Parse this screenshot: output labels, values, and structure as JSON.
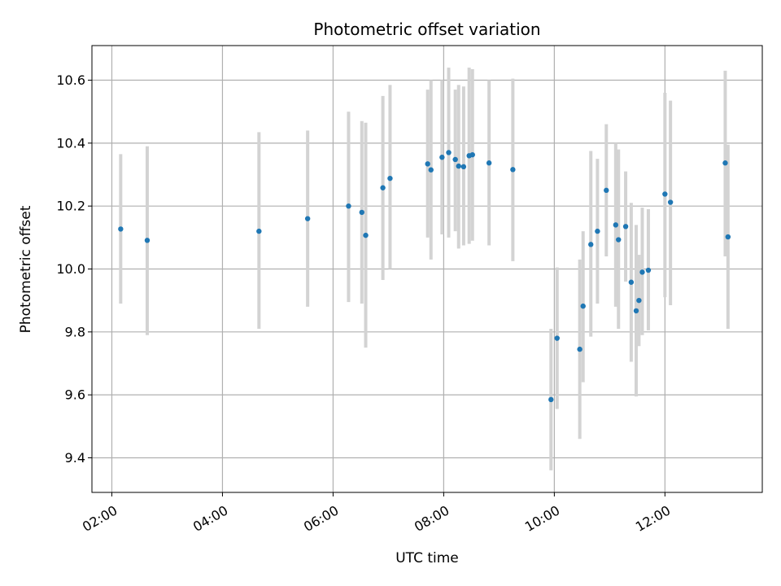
{
  "chart_data": {
    "type": "scatter",
    "title": "Photometric offset variation",
    "xlabel": "UTC time",
    "ylabel": "Photometric offset",
    "x_unit": "hours UTC",
    "xlim": [
      1.64,
      13.76
    ],
    "ylim": [
      9.29,
      10.71
    ],
    "x_ticks": [
      2,
      4,
      6,
      8,
      10,
      12
    ],
    "x_tick_labels": [
      "02:00",
      "04:00",
      "06:00",
      "08:00",
      "10:00",
      "12:00"
    ],
    "y_ticks": [
      9.4,
      9.6,
      9.8,
      10.0,
      10.2,
      10.4,
      10.6
    ],
    "y_tick_labels": [
      "9.4",
      "9.6",
      "9.8",
      "10.0",
      "10.2",
      "10.4",
      "10.6"
    ],
    "grid": true,
    "colors": {
      "points": "#1f77b4",
      "error_bars": "#d3d3d3",
      "grid": "#b0b0b0",
      "axes": "#000000"
    },
    "series": [
      {
        "points": [
          {
            "x": 2.16,
            "y": 10.127,
            "lo": 9.89,
            "hi": 10.365
          },
          {
            "x": 2.64,
            "y": 10.091,
            "lo": 9.79,
            "hi": 10.39
          },
          {
            "x": 4.66,
            "y": 10.12,
            "lo": 9.81,
            "hi": 10.435
          },
          {
            "x": 5.54,
            "y": 10.16,
            "lo": 9.88,
            "hi": 10.44
          },
          {
            "x": 6.28,
            "y": 10.2,
            "lo": 9.895,
            "hi": 10.5
          },
          {
            "x": 6.52,
            "y": 10.18,
            "lo": 9.89,
            "hi": 10.47
          },
          {
            "x": 6.59,
            "y": 10.107,
            "lo": 9.75,
            "hi": 10.465
          },
          {
            "x": 6.9,
            "y": 10.258,
            "lo": 9.965,
            "hi": 10.55
          },
          {
            "x": 7.03,
            "y": 10.288,
            "lo": 10.0,
            "hi": 10.585
          },
          {
            "x": 7.71,
            "y": 10.334,
            "lo": 10.1,
            "hi": 10.57
          },
          {
            "x": 7.77,
            "y": 10.315,
            "lo": 10.03,
            "hi": 10.6
          },
          {
            "x": 7.97,
            "y": 10.355,
            "lo": 10.11,
            "hi": 10.6
          },
          {
            "x": 8.09,
            "y": 10.37,
            "lo": 10.1,
            "hi": 10.64
          },
          {
            "x": 8.21,
            "y": 10.348,
            "lo": 10.12,
            "hi": 10.57
          },
          {
            "x": 8.27,
            "y": 10.327,
            "lo": 10.065,
            "hi": 10.585
          },
          {
            "x": 8.36,
            "y": 10.325,
            "lo": 10.075,
            "hi": 10.58
          },
          {
            "x": 8.46,
            "y": 10.36,
            "lo": 10.08,
            "hi": 10.64
          },
          {
            "x": 8.52,
            "y": 10.363,
            "lo": 10.09,
            "hi": 10.635
          },
          {
            "x": 8.82,
            "y": 10.337,
            "lo": 10.075,
            "hi": 10.6
          },
          {
            "x": 9.25,
            "y": 10.316,
            "lo": 10.025,
            "hi": 10.605
          },
          {
            "x": 9.94,
            "y": 9.585,
            "lo": 9.36,
            "hi": 9.81
          },
          {
            "x": 10.05,
            "y": 9.78,
            "lo": 9.555,
            "hi": 10.005
          },
          {
            "x": 10.46,
            "y": 9.745,
            "lo": 9.46,
            "hi": 10.03
          },
          {
            "x": 10.52,
            "y": 9.882,
            "lo": 9.64,
            "hi": 10.12
          },
          {
            "x": 10.66,
            "y": 10.078,
            "lo": 9.785,
            "hi": 10.375
          },
          {
            "x": 10.78,
            "y": 10.12,
            "lo": 9.89,
            "hi": 10.35
          },
          {
            "x": 10.94,
            "y": 10.25,
            "lo": 10.04,
            "hi": 10.46
          },
          {
            "x": 11.11,
            "y": 10.14,
            "lo": 9.88,
            "hi": 10.4
          },
          {
            "x": 11.16,
            "y": 10.093,
            "lo": 9.81,
            "hi": 10.38
          },
          {
            "x": 11.29,
            "y": 10.135,
            "lo": 9.96,
            "hi": 10.31
          },
          {
            "x": 11.39,
            "y": 9.958,
            "lo": 9.705,
            "hi": 10.21
          },
          {
            "x": 11.48,
            "y": 9.867,
            "lo": 9.595,
            "hi": 10.14
          },
          {
            "x": 11.53,
            "y": 9.9,
            "lo": 9.755,
            "hi": 10.045
          },
          {
            "x": 11.59,
            "y": 9.99,
            "lo": 9.79,
            "hi": 10.195
          },
          {
            "x": 11.7,
            "y": 9.996,
            "lo": 9.805,
            "hi": 10.19
          },
          {
            "x": 12.0,
            "y": 10.238,
            "lo": 9.91,
            "hi": 10.56
          },
          {
            "x": 12.1,
            "y": 10.212,
            "lo": 9.885,
            "hi": 10.535
          },
          {
            "x": 13.09,
            "y": 10.337,
            "lo": 10.04,
            "hi": 10.63
          },
          {
            "x": 13.14,
            "y": 10.102,
            "lo": 9.81,
            "hi": 10.395
          }
        ]
      }
    ]
  }
}
